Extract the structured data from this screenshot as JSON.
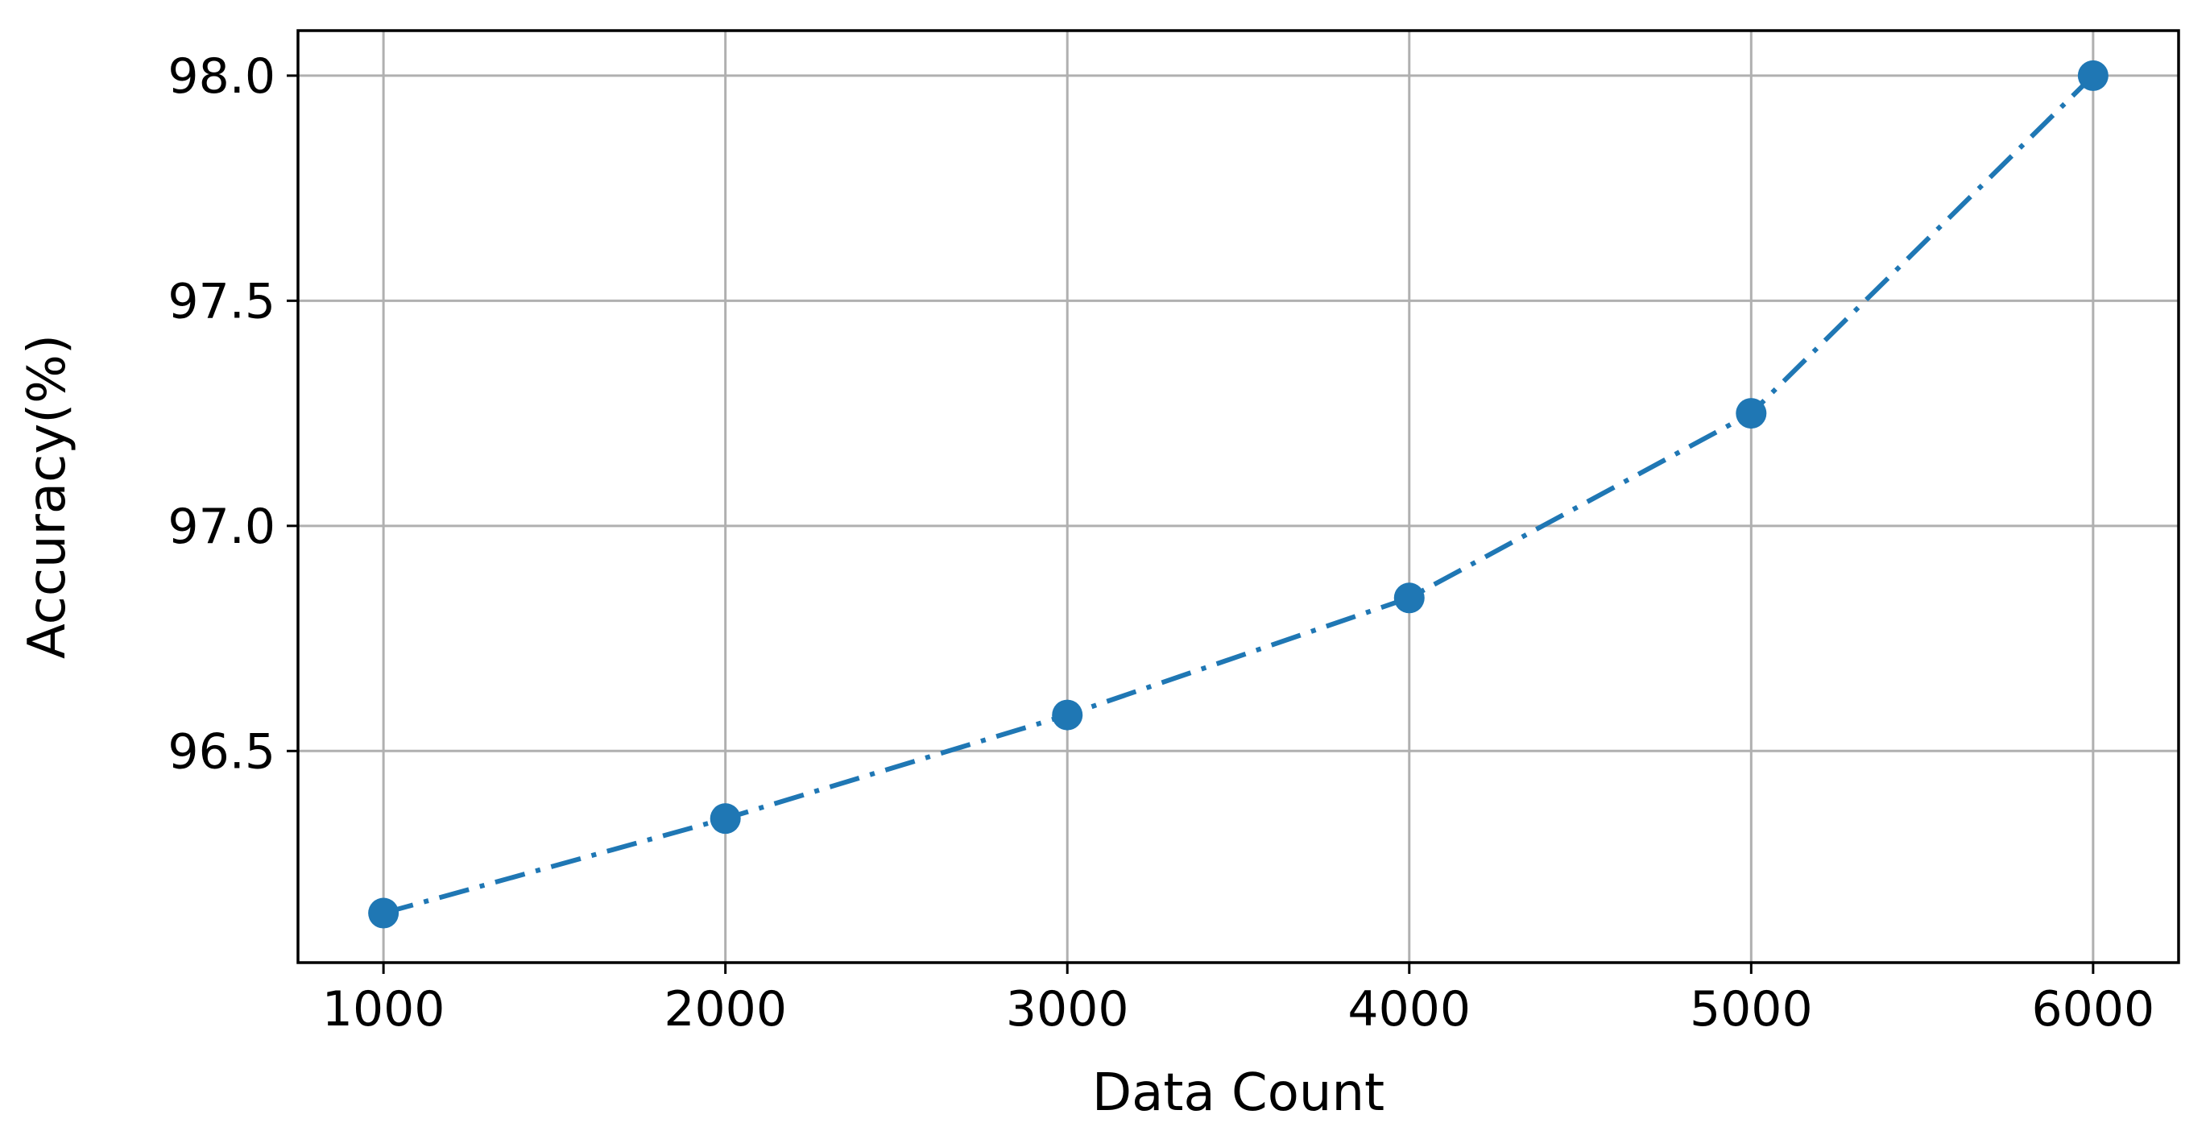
{
  "chart_data": {
    "type": "line",
    "title": "",
    "xlabel": "Data Count",
    "ylabel": "Accuracy(%)",
    "x": [
      1000,
      2000,
      3000,
      4000,
      5000,
      6000
    ],
    "series": [
      {
        "values": [
          96.14,
          96.35,
          96.58,
          96.84,
          97.25,
          98.0
        ],
        "color": "#1f77b4",
        "line_style": "dash-dot",
        "marker": "circle"
      }
    ],
    "xlim": [
      750,
      6250
    ],
    "ylim": [
      96.03,
      98.1
    ],
    "xticks": [
      1000,
      2000,
      3000,
      4000,
      5000,
      6000
    ],
    "xtick_labels": [
      "1000",
      "2000",
      "3000",
      "4000",
      "5000",
      "6000"
    ],
    "yticks": [
      96.5,
      97.0,
      97.5,
      98.0
    ],
    "ytick_labels": [
      "96.5",
      "97.0",
      "97.5",
      "98.0"
    ],
    "grid": true,
    "legend": "none"
  }
}
